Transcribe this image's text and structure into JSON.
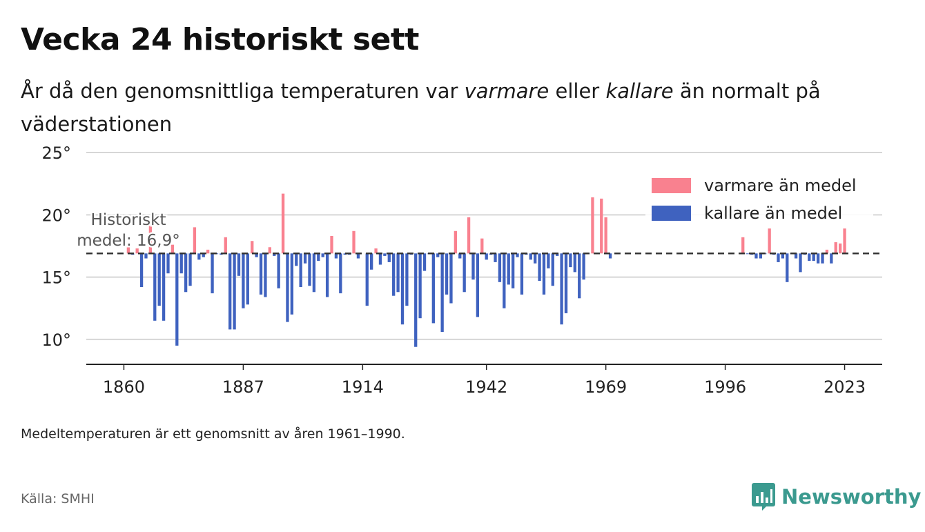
{
  "header": {
    "title": "Vecka 24 historiskt sett",
    "subtitle_before_warm": "År då den genomsnittliga temperaturen var ",
    "subtitle_warm": "varmare",
    "subtitle_mid": " eller ",
    "subtitle_cold": "kallare",
    "subtitle_after_cold": " än normalt på väderstationen"
  },
  "footer": {
    "note": "Medeltemperaturen är ett genomsnitt av åren 1961–1990.",
    "source": "Källa: SMHI",
    "brand": "Newsworthy"
  },
  "colors": {
    "warm": "#f9818f",
    "cold": "#3f62bf",
    "brand": "#3b9a8f",
    "grid": "#d6d6d6",
    "axis": "#222222",
    "reference": "#333333"
  },
  "chart_data": {
    "type": "bar",
    "baseline": 16.9,
    "reference_label": [
      "Historiskt",
      "medel: 16,9°"
    ],
    "ylim": [
      8,
      25.5
    ],
    "xlim": [
      1851.5,
      2031.5
    ],
    "y_ticks": [
      10,
      15,
      20,
      25
    ],
    "y_tick_labels": [
      "10°",
      "15°",
      "20°",
      "25°"
    ],
    "x_ticks": [
      1860,
      1887,
      1914,
      1942,
      1969,
      1996,
      2023
    ],
    "x_tick_labels": [
      "1860",
      "1887",
      "1914",
      "1942",
      "1969",
      "1996",
      "2023"
    ],
    "grid": true,
    "legend": {
      "position": "top-right",
      "items": [
        {
          "label": "varmare än medel",
          "color": "#f9818f"
        },
        {
          "label": "kallare än medel",
          "color": "#3f62bf"
        }
      ]
    },
    "series": [
      {
        "name": "varmare än medel",
        "color": "#f9818f",
        "x": [
          1861,
          1863,
          1866,
          1871,
          1876,
          1879,
          1883,
          1889,
          1893,
          1896,
          1907,
          1912,
          1917,
          1935,
          1938,
          1941,
          1966,
          1968,
          1969,
          2000,
          2006,
          2019,
          2021,
          2022,
          2023
        ],
        "values": [
          17.6,
          17.3,
          19.3,
          17.6,
          19.0,
          17.2,
          18.2,
          17.9,
          17.4,
          21.7,
          18.3,
          18.7,
          17.3,
          18.7,
          19.8,
          18.1,
          21.4,
          21.3,
          19.8,
          18.2,
          18.9,
          17.2,
          17.8,
          17.7,
          18.9
        ]
      },
      {
        "name": "kallare än medel",
        "color": "#3f62bf",
        "x": [
          1862,
          1864,
          1865,
          1867,
          1868,
          1869,
          1870,
          1872,
          1873,
          1874,
          1875,
          1877,
          1878,
          1880,
          1881,
          1882,
          1884,
          1885,
          1886,
          1887,
          1888,
          1890,
          1891,
          1892,
          1894,
          1895,
          1897,
          1898,
          1899,
          1900,
          1901,
          1902,
          1903,
          1904,
          1905,
          1906,
          1908,
          1909,
          1910,
          1911,
          1913,
          1915,
          1916,
          1918,
          1919,
          1920,
          1921,
          1922,
          1923,
          1924,
          1925,
          1926,
          1927,
          1928,
          1929,
          1930,
          1931,
          1932,
          1933,
          1934,
          1936,
          1937,
          1939,
          1940,
          1942,
          1943,
          1944,
          1945,
          1946,
          1947,
          1948,
          1949,
          1950,
          1951,
          1952,
          1953,
          1954,
          1955,
          1956,
          1957,
          1958,
          1959,
          1960,
          1961,
          1962,
          1963,
          1964,
          1965,
          1967,
          1970,
          2001,
          2002,
          2003,
          2004,
          2005,
          2007,
          2008,
          2009,
          2010,
          2011,
          2012,
          2013,
          2014,
          2015,
          2016,
          2017,
          2018,
          2020
        ],
        "values": [
          16.8,
          14.2,
          16.5,
          11.5,
          12.7,
          11.5,
          15.3,
          9.5,
          15.3,
          13.8,
          14.3,
          16.4,
          16.6,
          13.7,
          16.9,
          16.8,
          10.8,
          10.8,
          15.1,
          12.5,
          12.8,
          16.6,
          13.6,
          13.4,
          16.7,
          14.1,
          11.4,
          12.0,
          15.9,
          14.2,
          16.1,
          14.3,
          13.8,
          16.3,
          16.6,
          13.4,
          16.5,
          13.7,
          16.8,
          16.8,
          16.5,
          12.7,
          15.6,
          16.0,
          16.7,
          16.2,
          13.5,
          13.8,
          11.2,
          12.7,
          16.8,
          9.4,
          11.7,
          15.5,
          16.9,
          11.3,
          16.6,
          10.6,
          13.6,
          12.9,
          16.5,
          13.8,
          14.8,
          11.8,
          16.4,
          16.8,
          16.2,
          14.6,
          12.5,
          14.4,
          14.1,
          16.6,
          13.6,
          16.8,
          16.4,
          16.1,
          14.7,
          13.6,
          15.7,
          14.3,
          16.7,
          11.2,
          12.1,
          15.8,
          15.4,
          13.3,
          14.8,
          16.9,
          16.9,
          16.5,
          16.9,
          16.8,
          16.5,
          16.5,
          16.9,
          16.8,
          16.2,
          16.5,
          14.6,
          16.9,
          16.5,
          15.4,
          16.8,
          16.3,
          16.3,
          16.1,
          16.1,
          16.1
        ]
      }
    ]
  }
}
